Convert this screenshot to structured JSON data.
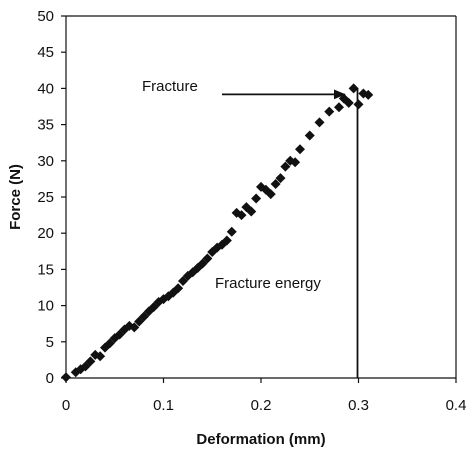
{
  "chart_data": {
    "type": "scatter",
    "title": "",
    "xlabel": "Deformation (mm)",
    "ylabel": "Force (N)",
    "xlim": [
      0,
      0.4
    ],
    "ylim": [
      0,
      50
    ],
    "xticks": [
      0,
      0.1,
      0.2,
      0.3,
      0.4
    ],
    "xtick_labels": [
      "0",
      "0.1",
      "0.2",
      "0.3",
      "0.4"
    ],
    "yticks": [
      0,
      5,
      10,
      15,
      20,
      25,
      30,
      35,
      40,
      45,
      50
    ],
    "ytick_labels": [
      "0",
      "5",
      "10",
      "15",
      "20",
      "25",
      "30",
      "35",
      "40",
      "45",
      "50"
    ],
    "grid": false,
    "legend": "none",
    "marker": "diamond",
    "marker_color": "#111111",
    "series": [
      {
        "x": [
          0.0,
          0.01,
          0.015,
          0.02,
          0.025,
          0.03,
          0.035,
          0.04,
          0.045,
          0.05,
          0.055,
          0.06,
          0.065,
          0.07,
          0.075,
          0.08,
          0.085,
          0.09,
          0.095,
          0.1,
          0.105,
          0.11,
          0.115,
          0.12,
          0.125,
          0.13,
          0.135,
          0.14,
          0.145,
          0.15,
          0.155,
          0.16,
          0.165,
          0.17,
          0.175,
          0.18,
          0.185,
          0.19,
          0.195,
          0.2,
          0.205,
          0.21,
          0.215,
          0.22,
          0.225,
          0.23,
          0.235,
          0.24,
          0.25,
          0.26,
          0.27,
          0.28,
          0.285,
          0.29,
          0.295,
          0.3,
          0.305,
          0.31
        ],
        "y": [
          0.1,
          0.8,
          1.2,
          1.6,
          2.3,
          3.2,
          3.0,
          4.2,
          4.8,
          5.5,
          6.0,
          6.7,
          7.2,
          7.0,
          7.8,
          8.5,
          9.2,
          9.8,
          10.5,
          10.9,
          11.3,
          11.8,
          12.4,
          13.4,
          14.1,
          14.6,
          15.2,
          15.8,
          16.5,
          17.4,
          18.0,
          18.4,
          19.0,
          20.2,
          22.8,
          22.5,
          23.6,
          23.0,
          24.8,
          26.4,
          26.0,
          25.4,
          26.8,
          27.6,
          29.2,
          30.0,
          29.8,
          31.6,
          33.5,
          35.3,
          36.8,
          37.4,
          38.6,
          38.0,
          40.0,
          37.8,
          39.3,
          39.1
        ]
      }
    ],
    "annotations": [
      {
        "text": "Fracture",
        "type": "arrow",
        "arrow_to": {
          "x": 0.29,
          "y": 40
        }
      },
      {
        "text": "Fracture energy",
        "type": "vertical-line",
        "line_x": 0.3,
        "line_y_top": 40
      }
    ]
  }
}
